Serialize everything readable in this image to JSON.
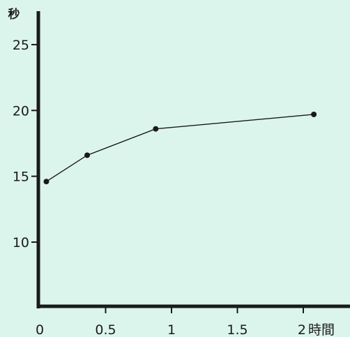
{
  "chart_data": {
    "type": "line",
    "title": "",
    "xlabel": "時間",
    "ylabel": "秒",
    "xlim": [
      0,
      2.3
    ],
    "ylim": [
      5,
      27
    ],
    "x_ticks": [
      {
        "value": 0,
        "label": "0"
      },
      {
        "value": 0.5,
        "label": "0.5"
      },
      {
        "value": 1,
        "label": "1"
      },
      {
        "value": 1.5,
        "label": "1.5"
      },
      {
        "value": 2,
        "label": "2"
      }
    ],
    "y_ticks": [
      {
        "value": 10,
        "label": "10"
      },
      {
        "value": 15,
        "label": "15"
      },
      {
        "value": 20,
        "label": "20"
      },
      {
        "value": 25,
        "label": "25"
      }
    ],
    "series": [
      {
        "x": [
          0.05,
          0.36,
          0.88,
          2.08
        ],
        "y": [
          14.6,
          16.6,
          18.6,
          19.7
        ]
      }
    ],
    "grid": false,
    "legend": "none",
    "colors": {
      "background": "#dcf5ec",
      "axis": "#1a1a1a",
      "line": "#1a1a1a",
      "marker": "#1a1a1a"
    }
  }
}
